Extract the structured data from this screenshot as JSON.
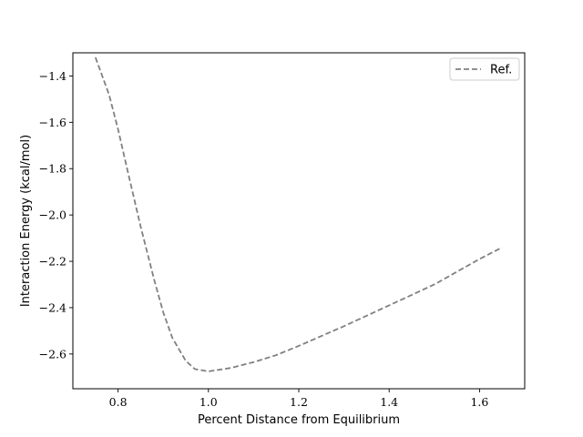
{
  "chart_data": {
    "type": "line",
    "title": "",
    "xlabel": "Percent Distance from Equilibrium",
    "ylabel": "Interaction Energy (kcal/mol)",
    "xlim": [
      0.7,
      1.7
    ],
    "ylim": [
      -2.75,
      -1.3
    ],
    "xticks": [
      {
        "value": 0.8,
        "label": "0.8"
      },
      {
        "value": 1.0,
        "label": "1.0"
      },
      {
        "value": 1.2,
        "label": "1.2"
      },
      {
        "value": 1.4,
        "label": "1.4"
      },
      {
        "value": 1.6,
        "label": "1.6"
      }
    ],
    "yticks": [
      {
        "value": -1.4,
        "label": "−1.4"
      },
      {
        "value": -1.6,
        "label": "−1.6"
      },
      {
        "value": -1.8,
        "label": "−1.8"
      },
      {
        "value": -2.0,
        "label": "−2.0"
      },
      {
        "value": -2.2,
        "label": "−2.2"
      },
      {
        "value": -2.4,
        "label": "−2.4"
      },
      {
        "value": -2.6,
        "label": "−2.6"
      }
    ],
    "grid": false,
    "legend_position": "top-right",
    "series": [
      {
        "name": "Ref.",
        "color": "#808080",
        "line_style": "dashed",
        "x": [
          0.75,
          0.78,
          0.8,
          0.82,
          0.85,
          0.88,
          0.9,
          0.92,
          0.95,
          0.97,
          1.0,
          1.05,
          1.1,
          1.15,
          1.2,
          1.3,
          1.4,
          1.5,
          1.6,
          1.65
        ],
        "y": [
          -1.32,
          -1.48,
          -1.63,
          -1.8,
          -2.05,
          -2.28,
          -2.42,
          -2.53,
          -2.63,
          -2.665,
          -2.675,
          -2.66,
          -2.635,
          -2.605,
          -2.565,
          -2.48,
          -2.39,
          -2.3,
          -2.19,
          -2.14
        ]
      }
    ]
  }
}
